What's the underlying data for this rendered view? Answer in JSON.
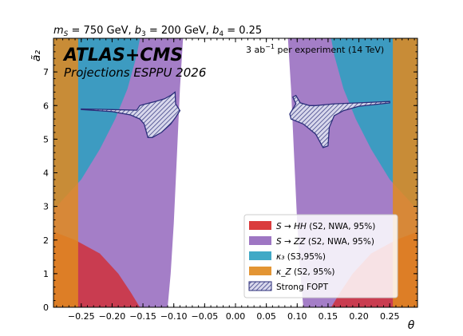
{
  "chart_data": {
    "type": "area",
    "title": "m_S = 750 GeV, b_3 = 200 GeV, b_4 = 0.25",
    "title_parts": {
      "m_sym": "m",
      "m_sub": "S",
      "m_val": " = 750 GeV, ",
      "b3_sym": "b",
      "b3_sub": "3",
      "b3_val": " = 200 GeV, ",
      "b4_sym": "b",
      "b4_sub": "4",
      "b4_val": " = 0.25"
    },
    "brand": "ATLAS+CMS",
    "subtitle": "Projections ESPPU 2026",
    "luminosity": {
      "value": "3 ab",
      "exp": "−1",
      "rest": "  per experiment (14 TeV)"
    },
    "xlabel": "θ",
    "ylabel": "ã₂",
    "xlim": [
      -0.295,
      0.295
    ],
    "ylim": [
      0,
      8.0
    ],
    "x_ticks": [
      -0.25,
      -0.2,
      -0.15,
      -0.1,
      -0.05,
      0.0,
      0.05,
      0.1,
      0.15,
      0.2,
      0.25
    ],
    "x_tick_labels": [
      "−0.25",
      "−0.20",
      "−0.15",
      "−0.10",
      "−0.05",
      "0.00",
      "0.05",
      "0.10",
      "0.15",
      "0.20",
      "0.25"
    ],
    "y_ticks": [
      0,
      1,
      2,
      3,
      4,
      5,
      6,
      7
    ],
    "y_tick_labels": [
      "0",
      "1",
      "2",
      "3",
      "4",
      "5",
      "6",
      "7"
    ],
    "legend_position": "bottom-right",
    "series": [
      {
        "name": "S → HH  (S2, NWA, 95%)",
        "legend_sym": "S → HH",
        "legend_rest": "  (S2, NWA, 95%)",
        "color": "#d62728",
        "regions": [
          [
            [
              -0.295,
              0.0
            ],
            [
              -0.295,
              2.25
            ],
            [
              -0.26,
              2.0
            ],
            [
              -0.22,
              1.6
            ],
            [
              -0.19,
              1.0
            ],
            [
              -0.17,
              0.45
            ],
            [
              -0.155,
              0.0
            ]
          ],
          [
            [
              0.295,
              0.0
            ],
            [
              0.295,
              2.25
            ],
            [
              0.26,
              2.0
            ],
            [
              0.22,
              1.6
            ],
            [
              0.19,
              1.0
            ],
            [
              0.17,
              0.45
            ],
            [
              0.155,
              0.0
            ]
          ]
        ]
      },
      {
        "name": "S → ZZ  (S2, NWA, 95%)",
        "legend_sym": "S → ZZ",
        "legend_rest": "  (S2, NWA, 95%)",
        "color": "#9467bd",
        "regions": [
          [
            [
              -0.295,
              0.0
            ],
            [
              -0.295,
              8.0
            ],
            [
              -0.085,
              8.0
            ],
            [
              -0.09,
              6.5
            ],
            [
              -0.095,
              4.5
            ],
            [
              -0.1,
              2.5
            ],
            [
              -0.105,
              1.0
            ],
            [
              -0.11,
              0.0
            ]
          ],
          [
            [
              0.295,
              0.0
            ],
            [
              0.295,
              8.0
            ],
            [
              0.085,
              8.0
            ],
            [
              0.09,
              6.5
            ],
            [
              0.095,
              4.5
            ],
            [
              0.1,
              2.5
            ],
            [
              0.105,
              1.0
            ],
            [
              0.11,
              0.0
            ]
          ]
        ]
      },
      {
        "name": "κ₃  (S3,95%)",
        "legend_sym": "κ₃",
        "legend_rest": "  (S3,95%)",
        "color": "#2ca0c0",
        "regions": [
          [
            [
              -0.295,
              2.9
            ],
            [
              -0.295,
              8.0
            ],
            [
              -0.155,
              8.0
            ],
            [
              -0.16,
              7.5
            ],
            [
              -0.175,
              6.5
            ],
            [
              -0.195,
              5.6
            ],
            [
              -0.22,
              4.7
            ],
            [
              -0.25,
              3.8
            ],
            [
              -0.275,
              3.3
            ]
          ],
          [
            [
              0.295,
              2.9
            ],
            [
              0.295,
              8.0
            ],
            [
              0.155,
              8.0
            ],
            [
              0.16,
              7.5
            ],
            [
              0.175,
              6.5
            ],
            [
              0.195,
              5.6
            ],
            [
              0.22,
              4.7
            ],
            [
              0.25,
              3.8
            ],
            [
              0.275,
              3.3
            ]
          ]
        ]
      },
      {
        "name": "κ_Z  (S2, 95%)",
        "legend_sym": "κ_Z",
        "legend_rest": "  (S2, 95%)",
        "color": "#e08a1e",
        "regions": [
          [
            [
              -0.295,
              0.0
            ],
            [
              -0.295,
              8.0
            ],
            [
              -0.255,
              8.0
            ],
            [
              -0.255,
              0.0
            ]
          ],
          [
            [
              0.255,
              0.0
            ],
            [
              0.255,
              8.0
            ],
            [
              0.295,
              8.0
            ],
            [
              0.295,
              0.0
            ]
          ]
        ]
      },
      {
        "name": "Strong FOPT",
        "legend_sym": "",
        "legend_rest": "Strong FOPT",
        "color": "#2b2e7a",
        "hatched": true,
        "regions": [
          [
            [
              -0.25,
              5.9
            ],
            [
              -0.2,
              5.88
            ],
            [
              -0.16,
              5.86
            ],
            [
              -0.155,
              6.0
            ],
            [
              -0.145,
              6.05
            ],
            [
              -0.13,
              6.12
            ],
            [
              -0.115,
              6.2
            ],
            [
              -0.105,
              6.3
            ],
            [
              -0.098,
              6.4
            ],
            [
              -0.097,
              6.05
            ],
            [
              -0.09,
              5.85
            ],
            [
              -0.097,
              5.65
            ],
            [
              -0.105,
              5.45
            ],
            [
              -0.12,
              5.2
            ],
            [
              -0.135,
              5.05
            ],
            [
              -0.142,
              5.05
            ],
            [
              -0.148,
              5.45
            ],
            [
              -0.155,
              5.6
            ],
            [
              -0.17,
              5.72
            ],
            [
              -0.2,
              5.82
            ],
            [
              -0.25,
              5.88
            ]
          ],
          [
            [
              0.25,
              6.12
            ],
            [
              0.2,
              6.08
            ],
            [
              0.16,
              6.05
            ],
            [
              0.13,
              6.0
            ],
            [
              0.12,
              6.0
            ],
            [
              0.105,
              6.08
            ],
            [
              0.098,
              6.3
            ],
            [
              0.093,
              6.25
            ],
            [
              0.098,
              6.05
            ],
            [
              0.088,
              5.75
            ],
            [
              0.09,
              5.6
            ],
            [
              0.11,
              5.45
            ],
            [
              0.13,
              5.15
            ],
            [
              0.142,
              4.75
            ],
            [
              0.15,
              4.8
            ],
            [
              0.152,
              5.35
            ],
            [
              0.16,
              5.7
            ],
            [
              0.175,
              5.85
            ],
            [
              0.2,
              5.98
            ],
            [
              0.25,
              6.08
            ]
          ]
        ]
      }
    ]
  }
}
